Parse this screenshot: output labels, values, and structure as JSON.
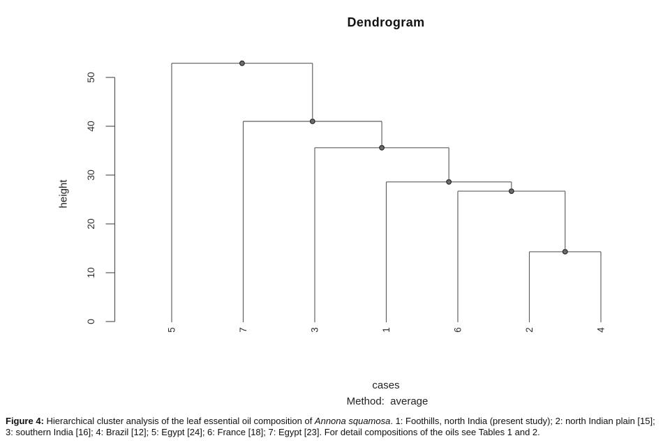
{
  "chart_data": {
    "type": "dendrogram",
    "title": "Dendrogram",
    "xlabel": "cases",
    "subtitle": "Method:  average",
    "ylabel": "height",
    "yticks": [
      0,
      10,
      20,
      30,
      40,
      50
    ],
    "ylim": [
      0,
      52.9
    ],
    "grid": false,
    "leaf_order": [
      "5",
      "7",
      "3",
      "1",
      "6",
      "2",
      "4"
    ],
    "merges": [
      {
        "id": "m1",
        "children": [
          "2",
          "4"
        ],
        "height": 14.3
      },
      {
        "id": "m2",
        "children": [
          "6",
          "m1"
        ],
        "height": 26.7
      },
      {
        "id": "m3",
        "children": [
          "1",
          "m2"
        ],
        "height": 28.6
      },
      {
        "id": "m4",
        "children": [
          "3",
          "m3"
        ],
        "height": 35.6
      },
      {
        "id": "m5",
        "children": [
          "7",
          "m4"
        ],
        "height": 41.0
      },
      {
        "id": "m6",
        "children": [
          "5",
          "m5"
        ],
        "height": 52.9
      }
    ]
  },
  "caption": {
    "label": "Figure 4:",
    "part1": " Hierarchical cluster analysis of the leaf essential oil composition of ",
    "species": "Annona squamosa",
    "part2": ". 1: Foothills, north India (present study); 2: north Indian plain [15]; 3: southern India [16]; 4: Brazil [12]; 5: Egypt [24]; 6: France [18]; 7: Egypt [23]. For detail compositions of the oils see Tables 1 and 2."
  },
  "colors": {
    "line": "#5c5c5c",
    "axis": "#4f4f4f",
    "tick_text": "#2e2e2e",
    "node_fill": "#6f6f6f",
    "node_stroke": "#222222"
  }
}
